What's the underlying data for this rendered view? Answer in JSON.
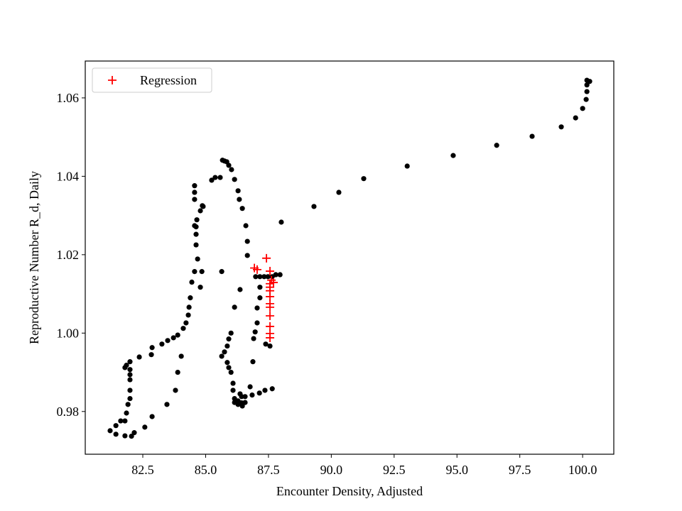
{
  "chart_data": {
    "type": "scatter",
    "xlabel": "Encounter Density, Adjusted",
    "ylabel": "Reproductive Number R_d, Daily",
    "xlim": [
      80.21,
      101.24
    ],
    "ylim": [
      0.9691,
      1.0694
    ],
    "xticks": [
      82.5,
      85.0,
      87.5,
      90.0,
      92.5,
      95.0,
      97.5,
      100.0
    ],
    "yticks": [
      0.98,
      1.0,
      1.02,
      1.04,
      1.06
    ],
    "legend": "upper left",
    "series": [
      {
        "color": "#000000",
        "marker": "dot",
        "x": [
          100.17,
          100.28,
          100.17,
          100.17,
          100.14,
          100.0,
          99.72,
          99.15,
          97.99,
          96.58,
          94.85,
          93.02,
          91.29,
          90.3,
          89.31,
          88.01,
          87.96,
          87.79,
          87.65,
          87.48,
          87.33,
          87.16,
          86.99,
          86.66,
          86.66,
          86.6,
          86.46,
          86.34,
          86.29,
          86.15,
          86.03,
          85.92,
          85.84,
          85.75,
          85.67,
          85.58,
          85.38,
          85.24,
          84.87,
          84.79,
          84.65,
          84.62,
          84.62,
          84.62,
          84.68,
          84.56,
          84.45,
          84.39,
          84.34,
          84.31,
          84.22,
          84.11,
          83.89,
          83.72,
          83.49,
          83.26,
          82.87,
          82.84,
          82.36,
          81.99,
          81.85,
          81.79,
          81.99,
          81.99,
          81.99,
          81.99,
          81.99,
          81.91,
          81.85,
          81.79,
          81.62,
          81.43,
          81.2,
          81.43,
          81.79,
          82.05,
          82.16,
          82.58,
          82.87,
          83.46,
          83.8,
          83.89,
          84.03,
          84.79,
          84.85,
          84.56,
          84.56,
          84.56,
          84.56,
          84.9,
          85.64,
          86.37,
          86.15,
          86.01,
          85.92,
          85.86,
          85.75,
          85.64,
          85.86,
          85.92,
          86.01,
          86.09,
          86.09,
          86.15,
          86.15,
          86.29,
          86.43,
          86.57,
          86.57,
          86.77,
          86.88,
          86.91,
          86.97,
          87.05,
          87.05,
          87.16,
          87.16,
          86.85,
          87.14,
          87.36,
          87.65,
          87.39,
          87.56,
          86.37,
          86.43,
          86.29,
          86.46
        ],
        "values": [
          1.0645,
          1.0642,
          1.0633,
          1.0616,
          1.0596,
          1.0573,
          1.0549,
          1.0526,
          1.0502,
          1.0479,
          1.0453,
          1.0426,
          1.0394,
          1.0359,
          1.0323,
          1.0283,
          1.0149,
          1.0149,
          1.0144,
          1.0144,
          1.0144,
          1.0144,
          1.0144,
          1.0198,
          1.0234,
          1.0274,
          1.0318,
          1.0341,
          1.0363,
          1.0392,
          1.0417,
          1.0428,
          1.0437,
          1.0439,
          1.0441,
          1.0397,
          1.0397,
          1.039,
          1.0325,
          1.0312,
          1.0289,
          1.0271,
          1.0252,
          1.0225,
          1.0189,
          1.0157,
          1.013,
          1.009,
          1.0066,
          1.0046,
          1.0026,
          1.0012,
          0.9995,
          0.9988,
          0.9981,
          0.9972,
          0.9963,
          0.9945,
          0.9939,
          0.9927,
          0.9918,
          0.9912,
          0.9907,
          0.9894,
          0.9881,
          0.9854,
          0.9833,
          0.9818,
          0.9796,
          0.9776,
          0.9776,
          0.9764,
          0.9751,
          0.9742,
          0.9738,
          0.9737,
          0.9746,
          0.976,
          0.9787,
          0.9818,
          0.9854,
          0.99,
          0.9941,
          1.0117,
          1.0157,
          1.0274,
          1.0341,
          1.0359,
          1.0376,
          1.0323,
          1.0157,
          1.0111,
          1.0066,
          1.0,
          0.9985,
          0.9967,
          0.9952,
          0.9941,
          0.9925,
          0.9912,
          0.99,
          0.9872,
          0.9854,
          0.9833,
          0.9823,
          0.9818,
          0.9822,
          0.9823,
          0.9838,
          0.9863,
          0.9927,
          0.9986,
          1.0003,
          1.0026,
          1.0064,
          1.009,
          1.0117,
          0.9842,
          0.9847,
          0.9854,
          0.9858,
          0.9972,
          0.9967,
          0.9845,
          0.9838,
          0.9827,
          0.9814
        ]
      },
      {
        "name": "Regression",
        "color": "#ff0000",
        "marker": "plus",
        "x": [
          87.42,
          86.94,
          87.05,
          87.56,
          87.62,
          87.7,
          87.56,
          87.56,
          87.56,
          87.56,
          87.56,
          87.56,
          87.56,
          87.56,
          87.56,
          87.56
        ],
        "values": [
          1.0191,
          1.0166,
          1.0162,
          1.0158,
          1.0135,
          1.0129,
          1.0126,
          1.0117,
          1.0108,
          1.0093,
          1.0075,
          1.0066,
          1.0044,
          1.0017,
          0.9999,
          0.9988
        ]
      }
    ]
  }
}
